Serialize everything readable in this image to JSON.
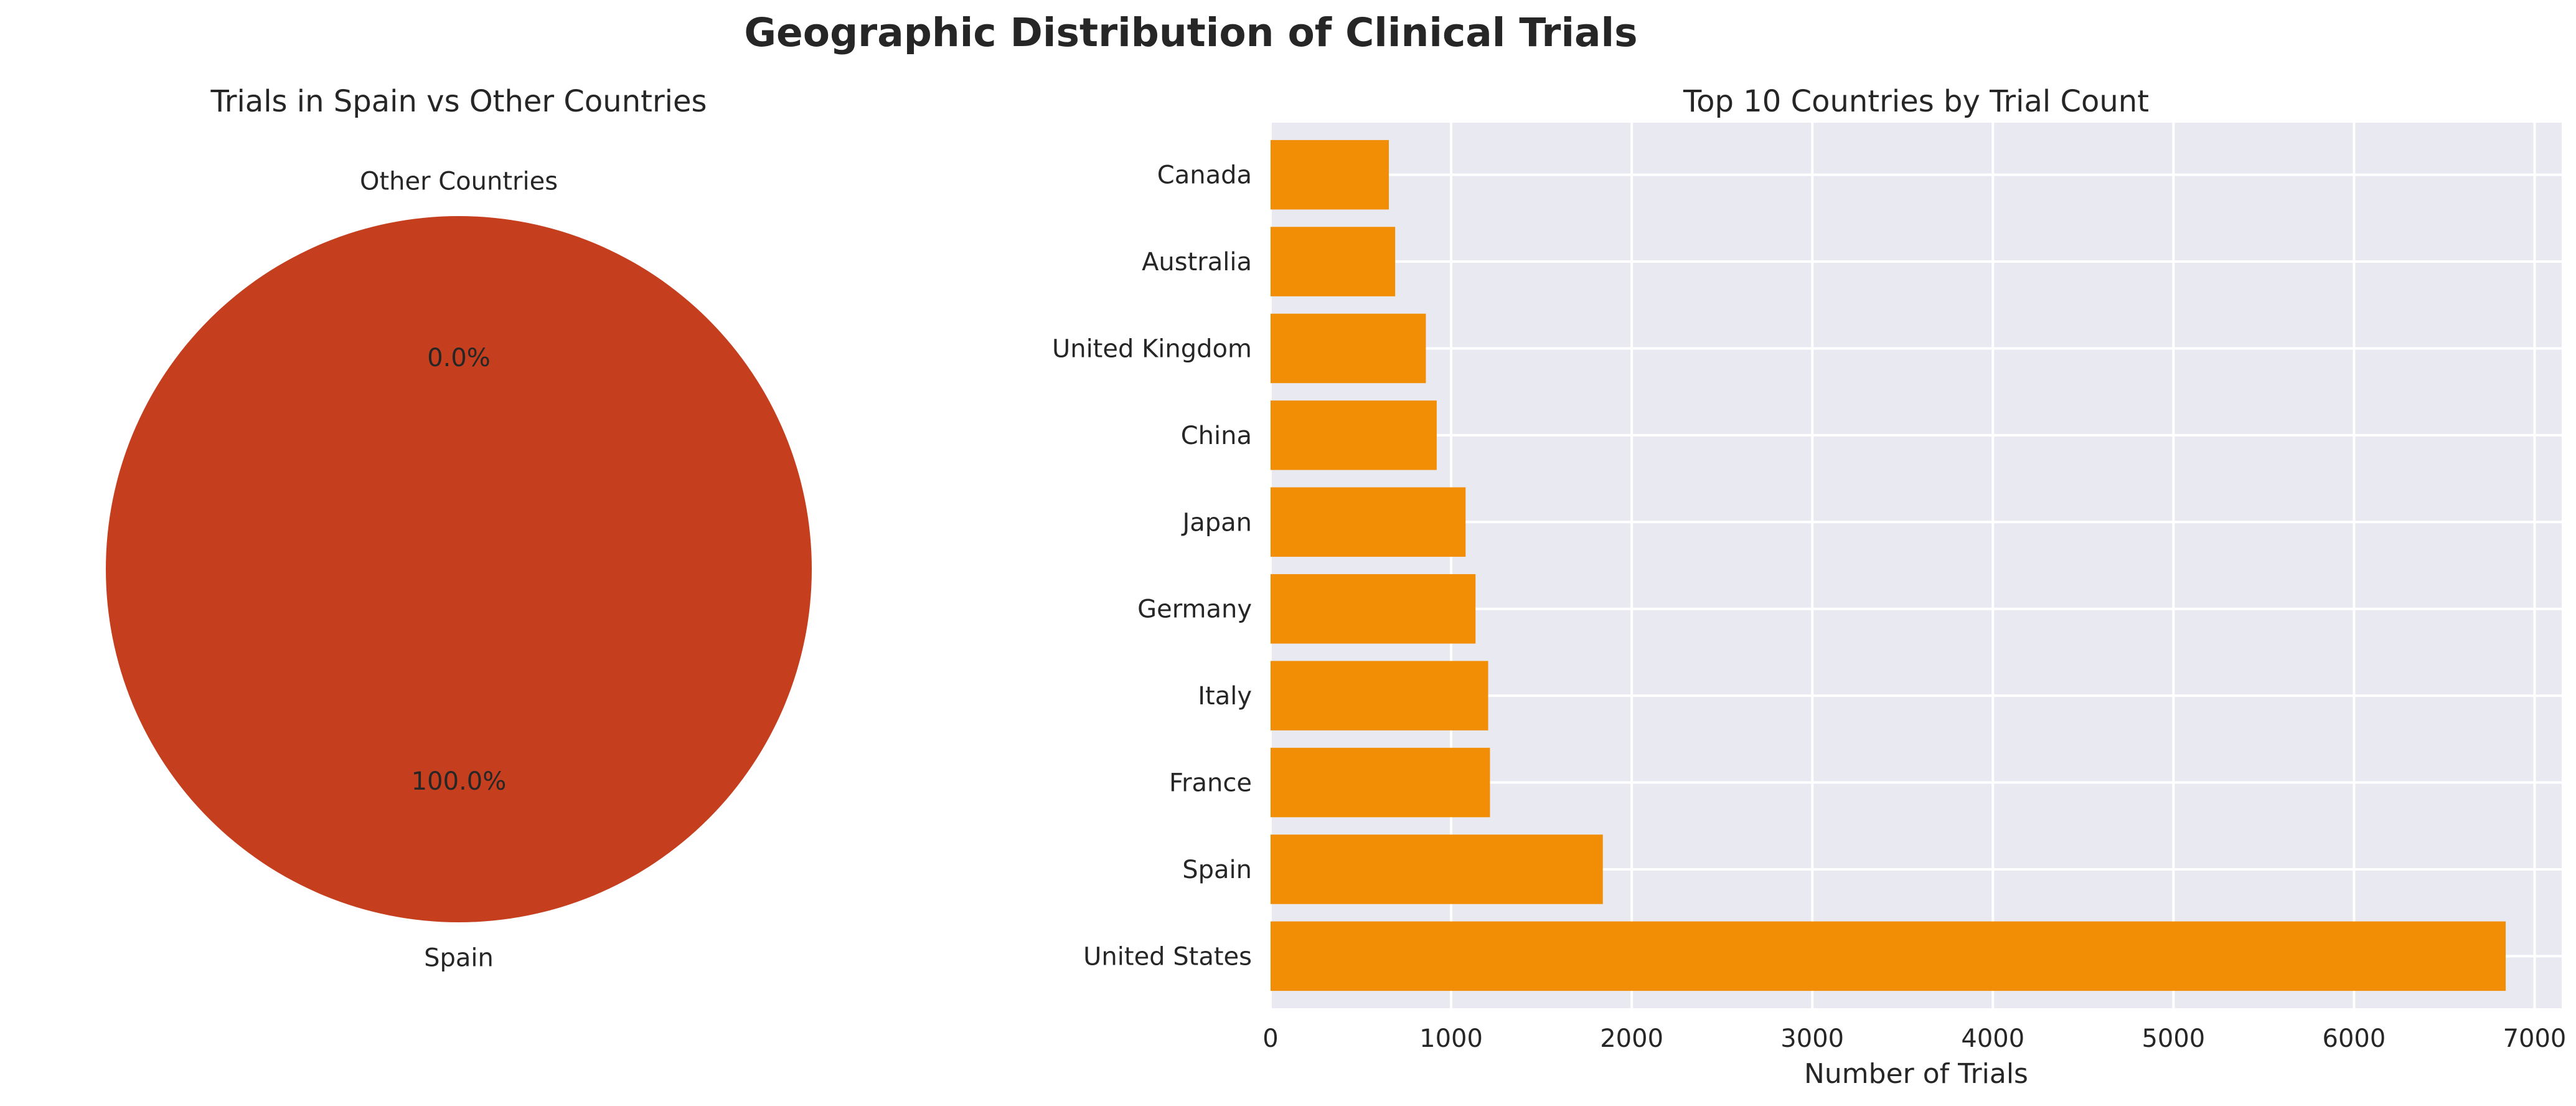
{
  "figure": {
    "suptitle": "Geographic Distribution of Clinical Trials"
  },
  "chart_data": [
    {
      "type": "pie",
      "title": "Trials in Spain vs Other Countries",
      "labels": [
        "Spain",
        "Other Countries"
      ],
      "values_percent": [
        100.0,
        0.0
      ],
      "autopct_labels": [
        "100.0%",
        "0.0%"
      ],
      "colors": [
        "#c53e1e",
        "#f28e05"
      ]
    },
    {
      "type": "bar",
      "orientation": "horizontal",
      "title": "Top 10 Countries by Trial Count",
      "xlabel": "Number of Trials",
      "ylabel": "",
      "categories": [
        "United States",
        "Spain",
        "France",
        "Italy",
        "Germany",
        "Japan",
        "China",
        "United Kingdom",
        "Australia",
        "Canada"
      ],
      "values": [
        6840,
        1840,
        1215,
        1205,
        1135,
        1080,
        920,
        860,
        690,
        655
      ],
      "xlim": [
        0,
        7150
      ],
      "xticks": [
        0,
        1000,
        2000,
        3000,
        4000,
        5000,
        6000,
        7000
      ],
      "xtick_labels": [
        "0",
        "1000",
        "2000",
        "3000",
        "4000",
        "5000",
        "6000",
        "7000"
      ],
      "grid": true,
      "bar_color": "#f28e05",
      "background_color": "#e9e9f1",
      "grid_color": "#ffffff"
    }
  ]
}
